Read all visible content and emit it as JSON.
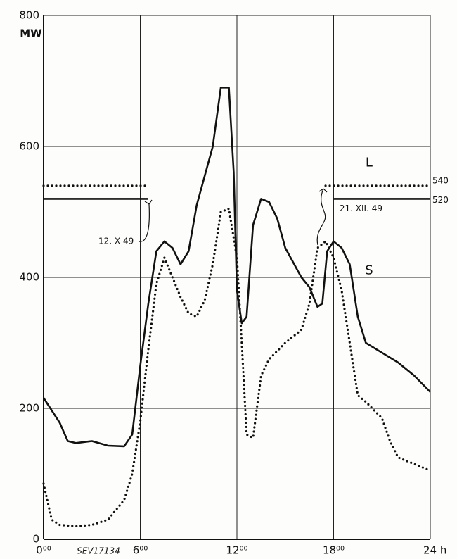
{
  "chart_data": {
    "type": "line",
    "y_label": "MW",
    "figure_id": "SEV17134",
    "xlim": [
      0,
      24
    ],
    "ylim": [
      0,
      800
    ],
    "xticks": [
      {
        "value": 0,
        "label": "0⁰⁰"
      },
      {
        "value": 6,
        "label": "6⁰⁰"
      },
      {
        "value": 12,
        "label": "12⁰⁰"
      },
      {
        "value": 18,
        "label": "18⁰⁰"
      },
      {
        "value": 24,
        "label": "24 h"
      }
    ],
    "yticks": [
      0,
      200,
      400,
      600,
      800
    ],
    "grid": true,
    "series": [
      {
        "color": "#111111",
        "style": "solid",
        "x": [
          0,
          1,
          1.5,
          2,
          3,
          4,
          5,
          5.5,
          6,
          6.5,
          7,
          7.5,
          8,
          8.5,
          9,
          9.5,
          10,
          10.5,
          11,
          11.5,
          11.8,
          12,
          12.3,
          12.6,
          13,
          13.5,
          14,
          14.5,
          15,
          16,
          16.5,
          17,
          17.3,
          17.6,
          18,
          18.5,
          19,
          19.5,
          20,
          21,
          22,
          23,
          24
        ],
        "values": [
          216,
          178,
          150,
          147,
          150,
          143,
          142,
          160,
          265,
          360,
          440,
          455,
          445,
          420,
          440,
          510,
          555,
          600,
          690,
          690,
          560,
          380,
          330,
          340,
          480,
          520,
          515,
          490,
          445,
          400,
          385,
          355,
          360,
          440,
          455,
          445,
          420,
          340,
          300,
          285,
          270,
          250,
          225
        ]
      },
      {
        "color": "#111111",
        "style": "dotted",
        "x": [
          0,
          0.5,
          1,
          2,
          3,
          4,
          5,
          5.5,
          6,
          6.5,
          7,
          7.5,
          8,
          8.5,
          9,
          9.5,
          10,
          10.5,
          11,
          11.5,
          12,
          12.3,
          12.6,
          13,
          13.5,
          14,
          15,
          16,
          16.5,
          17,
          17.5,
          18,
          18.5,
          19,
          19.5,
          20,
          21,
          21.5,
          22,
          23,
          24
        ],
        "values": [
          85,
          30,
          22,
          20,
          22,
          30,
          60,
          100,
          180,
          290,
          390,
          430,
          400,
          370,
          345,
          340,
          365,
          420,
          500,
          505,
          430,
          300,
          160,
          155,
          250,
          275,
          300,
          320,
          360,
          445,
          455,
          430,
          380,
          300,
          220,
          210,
          185,
          150,
          125,
          115,
          105
        ]
      }
    ],
    "reference_lines": [
      {
        "value": 540,
        "x": [
          0,
          6.5
        ],
        "style": "dotted"
      },
      {
        "value": 520,
        "x": [
          0,
          6.5
        ],
        "style": "solid"
      },
      {
        "value": 540,
        "x": [
          17.5,
          24
        ],
        "style": "dotted"
      },
      {
        "value": 520,
        "x": [
          18,
          24
        ],
        "style": "solid"
      }
    ],
    "annotations": [
      {
        "text": "12. X 49",
        "x": 4.5,
        "y": 455
      },
      {
        "text": "21. XII. 49",
        "x": 19.7,
        "y": 505
      },
      {
        "text": "L",
        "x": 20.2,
        "y": 575
      },
      {
        "text": "S",
        "x": 20.2,
        "y": 410
      }
    ]
  }
}
